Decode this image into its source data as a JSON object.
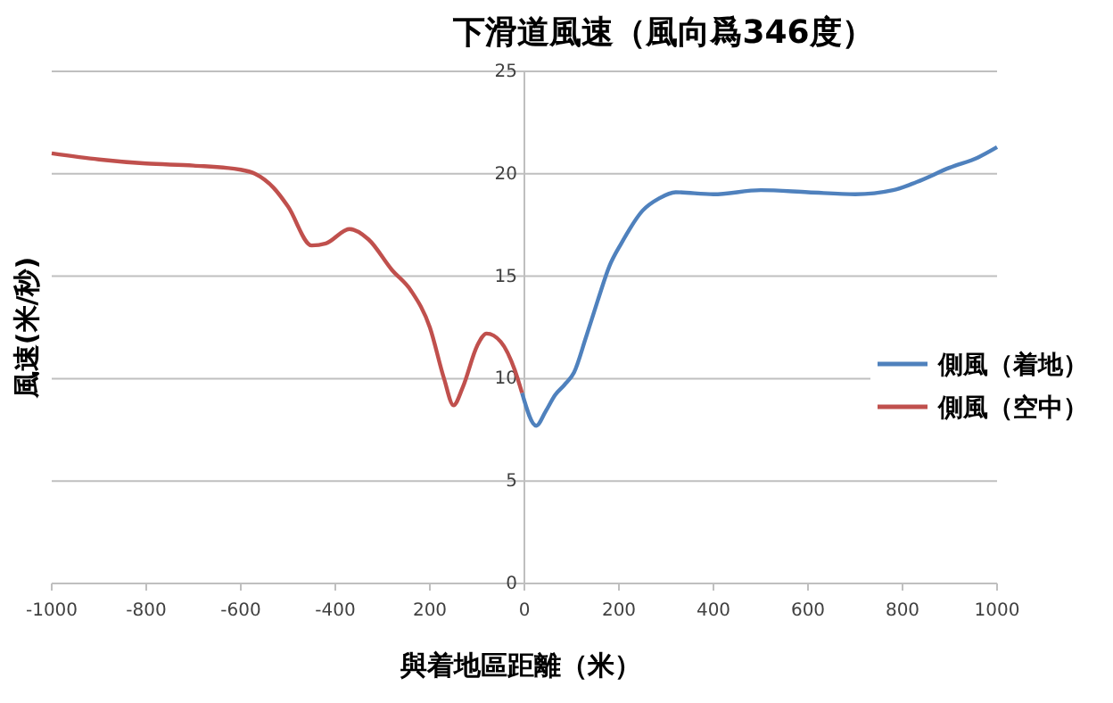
{
  "chart_data": {
    "type": "line",
    "title": "下滑道風速（風向爲346度）",
    "xlabel": "與着地區距離（米）",
    "ylabel": "風速(米/秒)",
    "xlim": [
      -1000,
      1000
    ],
    "xticks": [
      -1000,
      -800,
      -600,
      -400,
      {
        "value": -200,
        "label": "200"
      },
      0,
      200,
      400,
      600,
      800,
      1000
    ],
    "ylim": [
      0,
      25
    ],
    "yticks": [
      0,
      5,
      10,
      15,
      20,
      25
    ],
    "grid": "y",
    "legend": "right",
    "marker": "none",
    "line_style": "solid",
    "series": [
      {
        "name": "側風（着地）",
        "color": "#4f81bd",
        "x": [
          -5,
          25,
          45,
          65,
          85,
          105,
          130,
          155,
          180,
          205,
          250,
          285,
          320,
          400,
          500,
          600,
          700,
          780,
          830,
          900,
          960,
          1000
        ],
        "values": [
          9.3,
          7.7,
          8.4,
          9.2,
          9.7,
          10.3,
          12,
          13.8,
          15.5,
          16.6,
          18.2,
          18.8,
          19.1,
          19.0,
          19.2,
          19.1,
          19.0,
          19.2,
          19.6,
          20.3,
          20.8,
          21.3
        ]
      },
      {
        "name": "側風（空中）",
        "color": "#c0504d",
        "x": [
          -1000,
          -900,
          -800,
          -700,
          -600,
          -570,
          -530,
          -500,
          -450,
          -420,
          -370,
          -330,
          -280,
          -240,
          -200,
          -170,
          -150,
          -130,
          -100,
          -80,
          -50,
          -20,
          -5
        ],
        "values": [
          21,
          20.7,
          20.5,
          20.4,
          20.2,
          20,
          19.3,
          18.4,
          16.5,
          16.6,
          17.3,
          16.8,
          15.3,
          14.3,
          12.5,
          10,
          8.7,
          9.6,
          11.6,
          12.2,
          11.8,
          10.4,
          9.3
        ]
      }
    ]
  }
}
